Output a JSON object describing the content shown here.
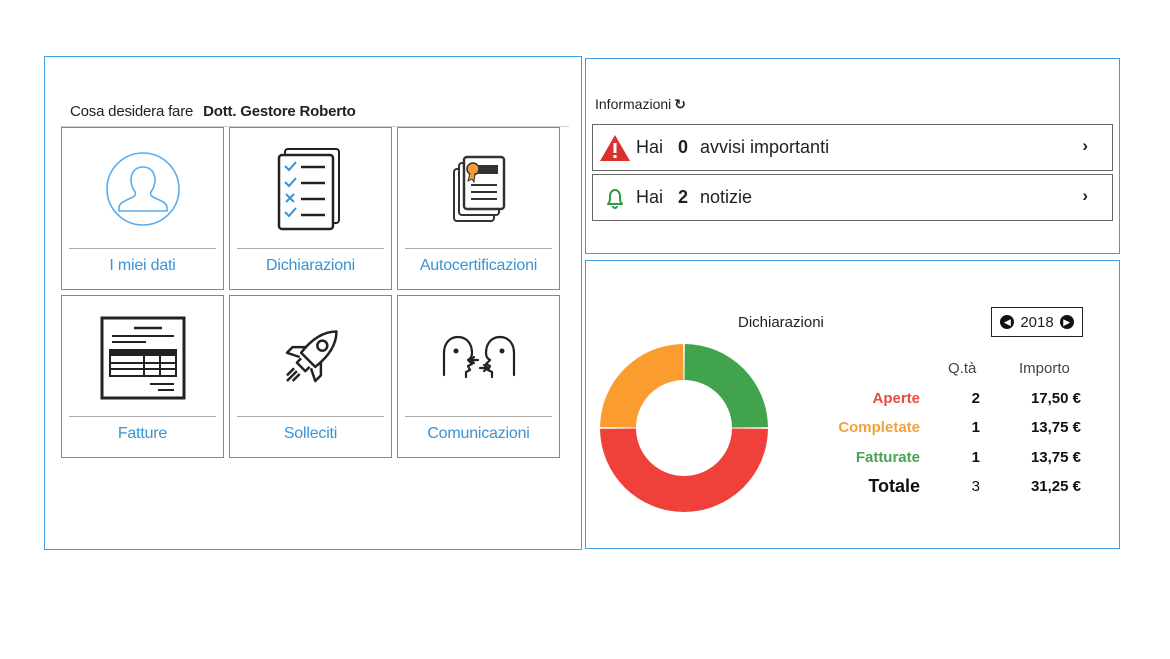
{
  "greeting": {
    "prompt": "Cosa desidera fare",
    "user": "Dott. Gestore Roberto"
  },
  "tiles": [
    {
      "label": "I miei dati"
    },
    {
      "label": "Dichiarazioni"
    },
    {
      "label": "Autocertificazioni"
    },
    {
      "label": "Fatture"
    },
    {
      "label": "Solleciti"
    },
    {
      "label": "Comunicazioni"
    }
  ],
  "info": {
    "title": "Informazioni",
    "notices": [
      {
        "prefix": "Hai",
        "count": "0",
        "text": "avvisi importanti",
        "icon": "warning-icon",
        "color": "#d9322e"
      },
      {
        "prefix": "Hai",
        "count": "2",
        "text": "notizie",
        "icon": "bell-icon",
        "color": "#2f9a3f"
      }
    ]
  },
  "declarations": {
    "title": "Dichiarazioni",
    "year": "2018",
    "col_qty": "Q.tà",
    "col_amount": "Importo",
    "rows": [
      {
        "label": "Aperte",
        "qty": "2",
        "amount": "17,50 €",
        "color": "#e84c3d"
      },
      {
        "label": "Completate",
        "qty": "1",
        "amount": "13,75 €",
        "color": "#f5a13a"
      },
      {
        "label": "Fatturate",
        "qty": "1",
        "amount": "13,75 €",
        "color": "#4aa252"
      },
      {
        "label": "Totale",
        "qty": "3",
        "amount": "31,25 €",
        "color": "#111111"
      }
    ]
  },
  "chart_data": {
    "type": "pie",
    "categories": [
      "Aperte",
      "Completate",
      "Fatturate"
    ],
    "values": [
      2,
      1,
      1
    ],
    "colors": [
      "#f0403a",
      "#fb9c2e",
      "#41a34b"
    ]
  }
}
